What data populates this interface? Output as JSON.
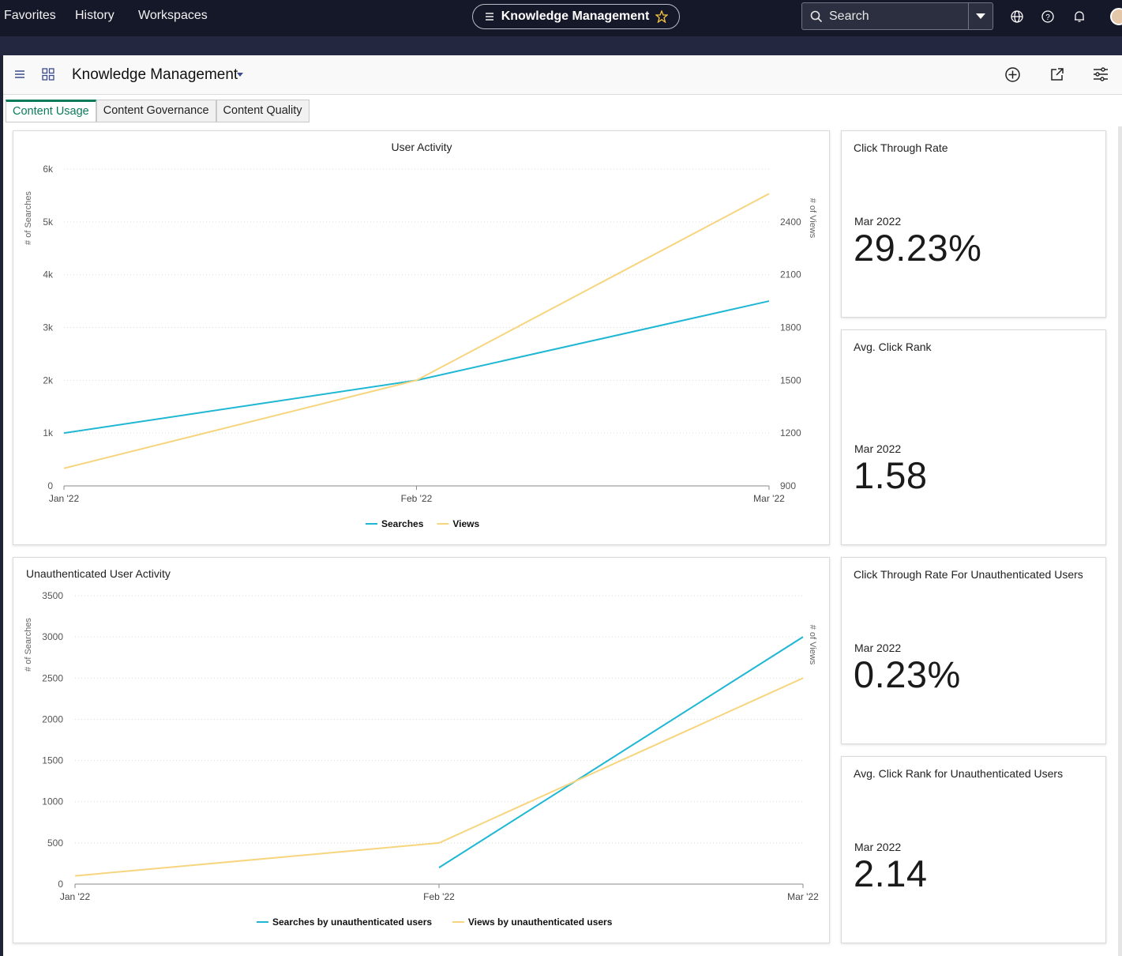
{
  "nav": {
    "favorites": "Favorites",
    "history": "History",
    "workspaces": "Workspaces"
  },
  "workspace_pill": {
    "title": "Knowledge Management"
  },
  "search": {
    "label": "Search"
  },
  "dashboard": {
    "title": "Knowledge Management"
  },
  "tabs": [
    "Content Usage",
    "Content Governance",
    "Content Quality"
  ],
  "kpis": [
    {
      "title": "Click Through Rate",
      "period": "Mar 2022",
      "value": "29.23%"
    },
    {
      "title": "Avg. Click Rank",
      "period": "Mar 2022",
      "value": "1.58"
    },
    {
      "title": "Click Through Rate For Unauthenticated Users",
      "period": "Mar 2022",
      "value": "0.23%"
    },
    {
      "title": "Avg. Click Rank for Unauthenticated Users",
      "period": "Mar 2022",
      "value": "2.14"
    }
  ],
  "colors": {
    "searches": "#1fb7d3",
    "views": "#f6d57e",
    "accent": "#0b7a5a"
  },
  "chart_data": [
    {
      "type": "line",
      "title": "User Activity",
      "categories": [
        "Jan '22",
        "Feb '22",
        "Mar '22"
      ],
      "ylabel": "# of Searches",
      "y2label": "# of Views",
      "ylim": [
        0,
        6000
      ],
      "y_ticks": [
        "0",
        "1k",
        "2k",
        "3k",
        "4k",
        "5k",
        "6k"
      ],
      "y2lim": [
        900,
        2700
      ],
      "y2_ticks": [
        "900",
        "1200",
        "1500",
        "1800",
        "2100",
        "2400"
      ],
      "series": [
        {
          "name": "Searches",
          "axis": "left",
          "values": [
            1000,
            2000,
            3500
          ]
        },
        {
          "name": "Views",
          "axis": "right",
          "values": [
            1000,
            1500,
            2560
          ]
        }
      ],
      "legend": "bottom"
    },
    {
      "type": "line",
      "title": "Unauthenticated User Activity",
      "categories": [
        "Jan '22",
        "Feb '22",
        "Mar '22"
      ],
      "ylabel": "# of Searches",
      "y2label": "# of Views",
      "ylim": [
        0,
        3500
      ],
      "y_ticks": [
        "0",
        "500",
        "1000",
        "1500",
        "2000",
        "2500",
        "3000",
        "3500"
      ],
      "series": [
        {
          "name": "Searches by unauthenticated users",
          "axis": "left",
          "values": [
            null,
            200,
            3000
          ]
        },
        {
          "name": "Views by unauthenticated users",
          "axis": "right",
          "values": [
            100,
            500,
            2500
          ]
        }
      ],
      "legend": "bottom"
    }
  ]
}
